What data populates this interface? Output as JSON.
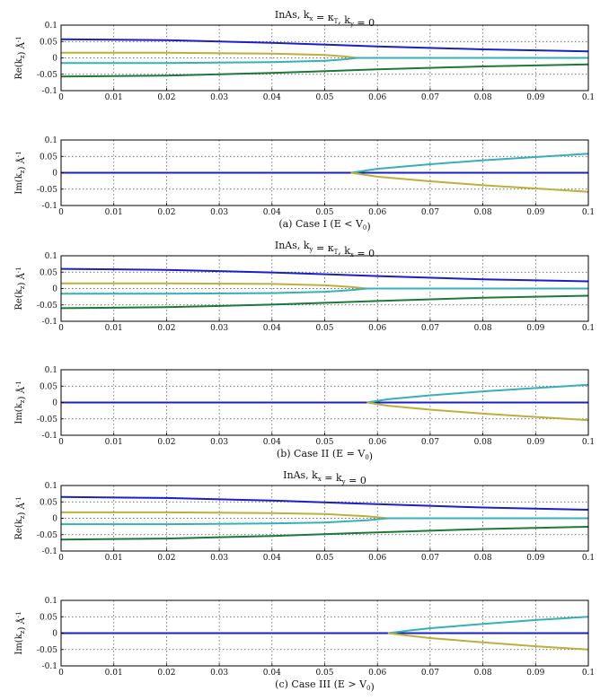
{
  "figure": {
    "x_ticks": [
      "0",
      "0.01",
      "0.02",
      "0.03",
      "0.04",
      "0.05",
      "0.06",
      "0.07",
      "0.08",
      "0.09",
      "0.1"
    ],
    "y_ticks": [
      "0.1",
      "0.05",
      "0",
      "-0.05",
      "-0.1"
    ]
  },
  "colors": {
    "blue": "#1a20c8",
    "cyan": "#36b0b8",
    "olive": "#bfae3a",
    "green": "#1a7a3a"
  },
  "chart_data": [
    {
      "type": "line",
      "title": "InAs, k_x = κ_T, k_y = 0",
      "ylabel": "Re(k_z) Å^-1",
      "xlim": [
        0,
        0.1
      ],
      "ylim": [
        -0.1,
        0.1
      ],
      "grid": true,
      "series": [
        {
          "name": "blue",
          "color": "blue",
          "x": [
            0,
            0.02,
            0.04,
            0.06,
            0.08,
            0.1
          ],
          "y": [
            0.057,
            0.054,
            0.046,
            0.035,
            0.026,
            0.02
          ]
        },
        {
          "name": "olive",
          "color": "olive",
          "x": [
            0,
            0.02,
            0.04,
            0.05,
            0.054,
            0.056,
            0.1
          ],
          "y": [
            0.016,
            0.016,
            0.013,
            0.009,
            0.004,
            0,
            0
          ]
        },
        {
          "name": "cyan",
          "color": "cyan",
          "x": [
            0,
            0.02,
            0.04,
            0.05,
            0.054,
            0.056,
            0.1
          ],
          "y": [
            -0.016,
            -0.016,
            -0.013,
            -0.009,
            -0.004,
            0,
            0
          ]
        },
        {
          "name": "green",
          "color": "green",
          "x": [
            0,
            0.02,
            0.04,
            0.06,
            0.08,
            0.1
          ],
          "y": [
            -0.057,
            -0.054,
            -0.046,
            -0.035,
            -0.026,
            -0.02
          ]
        }
      ]
    },
    {
      "type": "line",
      "ylabel": "Im(k_z) Å^-1",
      "caption": "(a) Case I (E < V_0)",
      "xlim": [
        0,
        0.1
      ],
      "ylim": [
        -0.1,
        0.1
      ],
      "grid": true,
      "series": [
        {
          "name": "blue",
          "color": "blue",
          "x": [
            0,
            0.1
          ],
          "y": [
            0,
            0
          ]
        },
        {
          "name": "cyan",
          "color": "cyan",
          "x": [
            0.055,
            0.06,
            0.07,
            0.08,
            0.09,
            0.1
          ],
          "y": [
            0,
            0.012,
            0.026,
            0.038,
            0.048,
            0.058
          ]
        },
        {
          "name": "olive",
          "color": "olive",
          "x": [
            0.055,
            0.06,
            0.07,
            0.08,
            0.09,
            0.1
          ],
          "y": [
            0,
            -0.012,
            -0.026,
            -0.038,
            -0.048,
            -0.058
          ]
        }
      ]
    },
    {
      "type": "line",
      "title": "InAs, k_y = κ_T, k_x = 0",
      "ylabel": "Re(k_z) Å^-1",
      "xlim": [
        0,
        0.1
      ],
      "ylim": [
        -0.1,
        0.1
      ],
      "grid": true,
      "series": [
        {
          "name": "blue",
          "color": "blue",
          "x": [
            0,
            0.02,
            0.04,
            0.06,
            0.08,
            0.1
          ],
          "y": [
            0.06,
            0.057,
            0.049,
            0.038,
            0.028,
            0.022
          ]
        },
        {
          "name": "olive",
          "color": "olive",
          "x": [
            0,
            0.02,
            0.04,
            0.05,
            0.055,
            0.058,
            0.1
          ],
          "y": [
            0.016,
            0.016,
            0.014,
            0.01,
            0.005,
            0,
            0
          ]
        },
        {
          "name": "cyan",
          "color": "cyan",
          "x": [
            0,
            0.02,
            0.04,
            0.05,
            0.055,
            0.058,
            0.1
          ],
          "y": [
            -0.016,
            -0.016,
            -0.014,
            -0.01,
            -0.005,
            0,
            0
          ]
        },
        {
          "name": "green",
          "color": "green",
          "x": [
            0,
            0.02,
            0.04,
            0.06,
            0.08,
            0.1
          ],
          "y": [
            -0.06,
            -0.057,
            -0.049,
            -0.038,
            -0.028,
            -0.022
          ]
        }
      ]
    },
    {
      "type": "line",
      "ylabel": "Im(k_z) Å^-1",
      "caption": "(b) Case II (E = V_0)",
      "xlim": [
        0,
        0.1
      ],
      "ylim": [
        -0.1,
        0.1
      ],
      "grid": true,
      "series": [
        {
          "name": "blue",
          "color": "blue",
          "x": [
            0,
            0.1
          ],
          "y": [
            0,
            0
          ]
        },
        {
          "name": "cyan",
          "color": "cyan",
          "x": [
            0.058,
            0.062,
            0.07,
            0.08,
            0.09,
            0.1
          ],
          "y": [
            0,
            0.01,
            0.022,
            0.034,
            0.044,
            0.054
          ]
        },
        {
          "name": "olive",
          "color": "olive",
          "x": [
            0.058,
            0.062,
            0.07,
            0.08,
            0.09,
            0.1
          ],
          "y": [
            0,
            -0.01,
            -0.022,
            -0.034,
            -0.044,
            -0.054
          ]
        }
      ]
    },
    {
      "type": "line",
      "title": "InAs, k_x = k_y = 0",
      "ylabel": "Re(k_z) Å^-1",
      "xlim": [
        0,
        0.1
      ],
      "ylim": [
        -0.1,
        0.1
      ],
      "grid": true,
      "series": [
        {
          "name": "blue",
          "color": "blue",
          "x": [
            0,
            0.02,
            0.04,
            0.06,
            0.08,
            0.1
          ],
          "y": [
            0.065,
            0.062,
            0.054,
            0.043,
            0.033,
            0.026
          ]
        },
        {
          "name": "olive",
          "color": "olive",
          "x": [
            0,
            0.02,
            0.04,
            0.05,
            0.058,
            0.062,
            0.1
          ],
          "y": [
            0.018,
            0.018,
            0.016,
            0.013,
            0.006,
            0,
            0
          ]
        },
        {
          "name": "cyan",
          "color": "cyan",
          "x": [
            0,
            0.02,
            0.04,
            0.05,
            0.058,
            0.062,
            0.1
          ],
          "y": [
            -0.018,
            -0.018,
            -0.016,
            -0.013,
            -0.006,
            0,
            0
          ]
        },
        {
          "name": "green",
          "color": "green",
          "x": [
            0,
            0.02,
            0.04,
            0.06,
            0.08,
            0.1
          ],
          "y": [
            -0.065,
            -0.062,
            -0.054,
            -0.043,
            -0.033,
            -0.026
          ]
        }
      ]
    },
    {
      "type": "line",
      "ylabel": "Im(k_z) Å^-1",
      "caption": "(c) Case III (E > V_0)",
      "xlim": [
        0,
        0.1
      ],
      "ylim": [
        -0.1,
        0.1
      ],
      "grid": true,
      "series": [
        {
          "name": "blue",
          "color": "blue",
          "x": [
            0,
            0.1
          ],
          "y": [
            0,
            0
          ]
        },
        {
          "name": "cyan",
          "color": "cyan",
          "x": [
            0.062,
            0.066,
            0.07,
            0.08,
            0.09,
            0.1
          ],
          "y": [
            0,
            0.008,
            0.015,
            0.028,
            0.04,
            0.05
          ]
        },
        {
          "name": "olive",
          "color": "olive",
          "x": [
            0.062,
            0.066,
            0.07,
            0.08,
            0.09,
            0.1
          ],
          "y": [
            0,
            -0.008,
            -0.015,
            -0.028,
            -0.04,
            -0.05
          ]
        }
      ]
    }
  ]
}
